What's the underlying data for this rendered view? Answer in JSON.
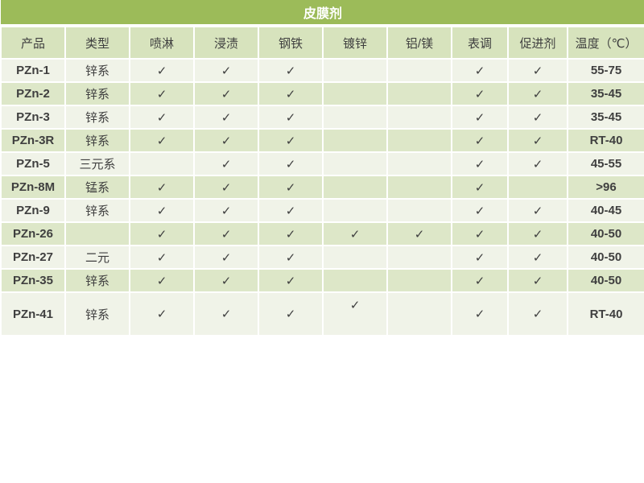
{
  "title": "皮膜剂",
  "colors": {
    "title_bg": "#9cbb59",
    "title_text": "#ffffff",
    "header_bg": "#d7e3bd",
    "row_light": "#f0f3e8",
    "row_green": "#dde7c8",
    "text": "#3f3f3f",
    "check": "#1a1a1a"
  },
  "table": {
    "headers": [
      "产品",
      "类型",
      "喷淋",
      "浸渍",
      "钢铁",
      "镀锌",
      "铝/镁",
      "表调",
      "促进剂",
      "温度（℃）"
    ],
    "check_glyph": "✓",
    "rows": [
      {
        "cells": [
          "PZn-1",
          "锌系",
          "✓",
          "✓",
          "✓",
          "",
          "",
          "✓",
          "✓",
          "55-75"
        ],
        "tall": false
      },
      {
        "cells": [
          "PZn-2",
          "锌系",
          "✓",
          "✓",
          "✓",
          "",
          "",
          "✓",
          "✓",
          "35-45"
        ],
        "tall": false
      },
      {
        "cells": [
          "PZn-3",
          "锌系",
          "✓",
          "✓",
          "✓",
          "",
          "",
          "✓",
          "✓",
          "35-45"
        ],
        "tall": false
      },
      {
        "cells": [
          "PZn-3R",
          "锌系",
          "✓",
          "✓",
          "✓",
          "",
          "",
          "✓",
          "✓",
          "RT-40"
        ],
        "tall": false
      },
      {
        "cells": [
          "PZn-5",
          "三元系",
          "",
          "✓",
          "✓",
          "",
          "",
          "✓",
          "✓",
          "45-55"
        ],
        "tall": false
      },
      {
        "cells": [
          "PZn-8M",
          "锰系",
          "✓",
          "✓",
          "✓",
          "",
          "",
          "✓",
          "",
          ">96"
        ],
        "tall": false
      },
      {
        "cells": [
          "PZn-9",
          "锌系",
          "✓",
          "✓",
          "✓",
          "",
          "",
          "✓",
          "✓",
          "40-45"
        ],
        "tall": false
      },
      {
        "cells": [
          "PZn-26",
          "",
          "✓",
          "✓",
          "✓",
          "✓",
          "✓",
          "✓",
          "✓",
          "40-50"
        ],
        "tall": false
      },
      {
        "cells": [
          "PZn-27",
          "二元",
          "✓",
          "✓",
          "✓",
          "",
          "",
          "✓",
          "✓",
          "40-50"
        ],
        "tall": false
      },
      {
        "cells": [
          "PZn-35",
          "锌系",
          "✓",
          "✓",
          "✓",
          "",
          "",
          "✓",
          "✓",
          "40-50"
        ],
        "tall": false
      },
      {
        "cells": [
          "PZn-41",
          "锌系",
          "✓",
          "✓",
          "✓",
          "✓",
          "",
          "✓",
          "✓",
          "RT-40"
        ],
        "tall": true
      }
    ]
  }
}
